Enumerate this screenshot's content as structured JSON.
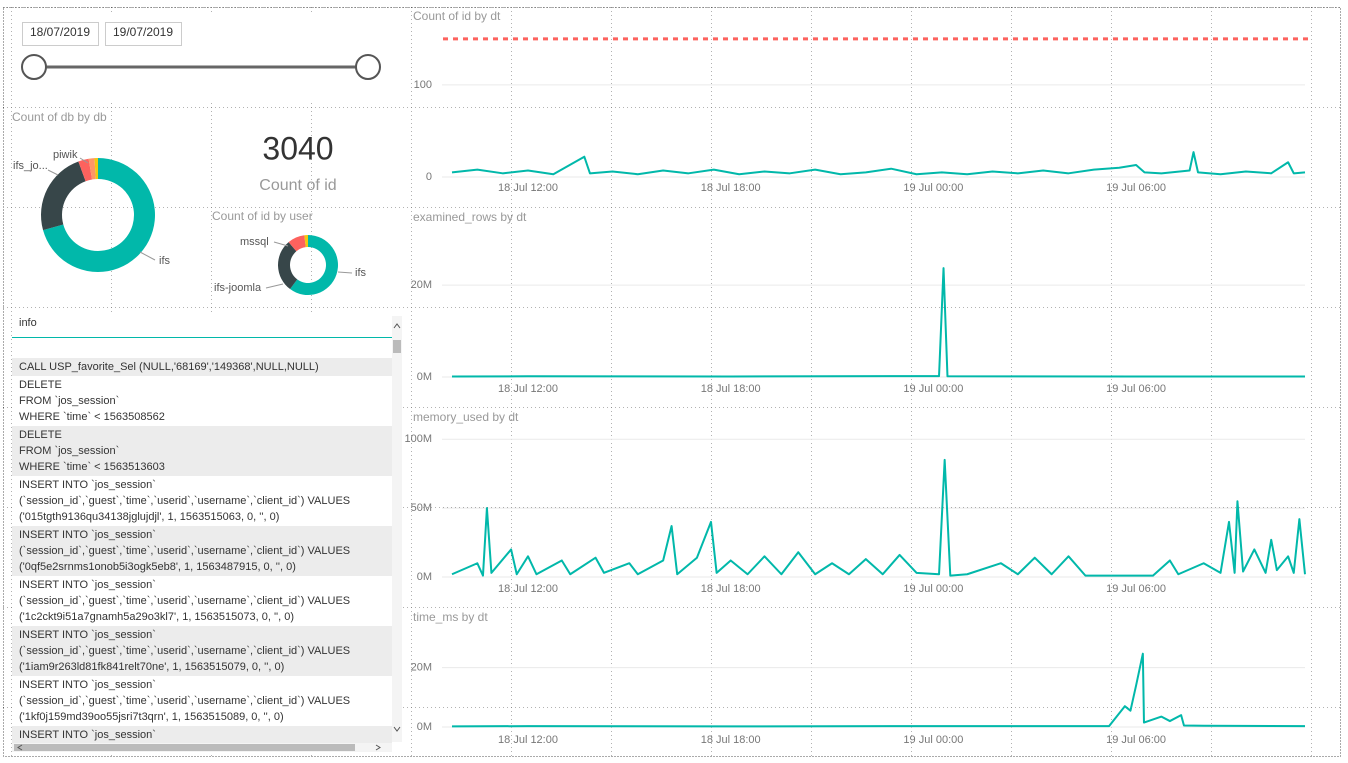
{
  "slicer": {
    "start": "18/07/2019",
    "end": "19/07/2019"
  },
  "card": {
    "value": 3040,
    "label": "Count of id"
  },
  "table": {
    "header": "info",
    "rows": [
      [
        "CALL USP_favorite_Sel (NULL,'68169','149368',NULL,NULL)"
      ],
      [
        "DELETE",
        "FROM `jos_session`",
        "WHERE `time` < 1563508562"
      ],
      [
        "DELETE",
        "FROM `jos_session`",
        "WHERE `time` < 1563513603"
      ],
      [
        "INSERT INTO `jos_session`",
        "(`session_id`,`guest`,`time`,`userid`,`username`,`client_id`) VALUES",
        "('015tgth9136qu34138jglujdjl', 1, 1563515063, 0, '', 0)"
      ],
      [
        "INSERT INTO `jos_session`",
        "(`session_id`,`guest`,`time`,`userid`,`username`,`client_id`) VALUES",
        "('0qf5e2srnms1onob5i3ogk5eb8', 1, 1563487915, 0, '', 0)"
      ],
      [
        "INSERT INTO `jos_session`",
        "(`session_id`,`guest`,`time`,`userid`,`username`,`client_id`) VALUES",
        "('1c2ckt9i51a7gnamh5a29o3kl7', 1, 1563515073, 0, '', 0)"
      ],
      [
        "INSERT INTO `jos_session`",
        "(`session_id`,`guest`,`time`,`userid`,`username`,`client_id`) VALUES",
        "('1iam9r263ld81fk841relt70ne', 1, 1563515079, 0, '', 0)"
      ],
      [
        "INSERT INTO `jos_session`",
        "(`session_id`,`guest`,`time`,`userid`,`username`,`client_id`) VALUES",
        "('1kf0j159md39oo55jsri7t3qrn', 1, 1563515089, 0, '', 0)"
      ],
      [
        "INSERT INTO `jos_session`"
      ]
    ]
  },
  "chart_data": [
    {
      "type": "donut",
      "title": "Count of db by db",
      "categories": [
        "ifs",
        "ifs_jo...",
        "piwik",
        null,
        null
      ],
      "values": [
        2150,
        720,
        90,
        50,
        30
      ],
      "colors": [
        "#01b8aa",
        "#374649",
        "#fd625e",
        "#fe9666",
        "#f2c80f"
      ]
    },
    {
      "type": "donut",
      "title": "Count of id by user",
      "categories": [
        "ifs",
        "ifs-joomla",
        "mssql",
        null
      ],
      "values": [
        1830,
        870,
        280,
        60
      ],
      "colors": [
        "#01b8aa",
        "#374649",
        "#fd625e",
        "#f2c80f"
      ]
    },
    {
      "type": "line",
      "title": "Count of id by dt",
      "color": "#01b8aa",
      "x": [
        "18 Jul 09:45",
        "18 Jul 10:30",
        "18 Jul 11:15",
        "18 Jul 12:00",
        "18 Jul 12:45",
        "18 Jul 13:40",
        "18 Jul 13:50",
        "18 Jul 14:30",
        "18 Jul 15:15",
        "18 Jul 16:00",
        "18 Jul 16:45",
        "18 Jul 17:30",
        "18 Jul 18:15",
        "18 Jul 19:00",
        "18 Jul 19:45",
        "18 Jul 20:30",
        "18 Jul 21:15",
        "18 Jul 22:00",
        "18 Jul 22:45",
        "18 Jul 23:30",
        "19 Jul 00:15",
        "19 Jul 01:00",
        "19 Jul 01:45",
        "19 Jul 02:30",
        "19 Jul 03:15",
        "19 Jul 04:00",
        "19 Jul 04:45",
        "19 Jul 05:30",
        "19 Jul 06:00",
        "19 Jul 06:15",
        "19 Jul 06:45",
        "19 Jul 07:35",
        "19 Jul 07:42",
        "19 Jul 07:50",
        "19 Jul 08:30",
        "19 Jul 09:15",
        "19 Jul 10:00",
        "19 Jul 10:30",
        "19 Jul 10:40",
        "19 Jul 11:00"
      ],
      "values": [
        5,
        8,
        4,
        7,
        3,
        22,
        4,
        6,
        3,
        7,
        4,
        8,
        3,
        6,
        4,
        8,
        3,
        5,
        9,
        3,
        5,
        3,
        6,
        4,
        7,
        4,
        8,
        10,
        13,
        5,
        4,
        7,
        27,
        5,
        3,
        6,
        4,
        16,
        4,
        5
      ],
      "xlim": [
        "18 Jul 09:45",
        "19 Jul 11:00"
      ],
      "xticks": [
        "18 Jul 12:00",
        "18 Jul 18:00",
        "19 Jul 00:00",
        "19 Jul 06:00"
      ],
      "ylim": [
        0,
        165
      ],
      "yticks": [
        0,
        100
      ],
      "grid": true,
      "reference_line": {
        "value": 150,
        "color": "#fd625e"
      }
    },
    {
      "type": "line",
      "title": "examined_rows by dt",
      "color": "#01b8aa",
      "x": [
        "18 Jul 09:45",
        "18 Jul 12:00",
        "18 Jul 18:00",
        "19 Jul 00:10",
        "19 Jul 00:18",
        "19 Jul 00:25",
        "19 Jul 06:00",
        "19 Jul 11:00"
      ],
      "values": [
        100000,
        150000,
        120000,
        200000,
        23700000,
        150000,
        100000,
        120000
      ],
      "xlim": [
        "18 Jul 09:45",
        "19 Jul 11:00"
      ],
      "xticks": [
        "18 Jul 12:00",
        "18 Jul 18:00",
        "19 Jul 00:00",
        "19 Jul 06:00"
      ],
      "ylim": [
        0,
        32000000
      ],
      "yticks": [
        {
          "value": 0,
          "label": "0M"
        },
        {
          "value": 20000000,
          "label": "20M"
        }
      ],
      "grid": true
    },
    {
      "type": "line",
      "title": "memory_used by dt",
      "color": "#01b8aa",
      "x": [
        "18 Jul 09:45",
        "18 Jul 10:30",
        "18 Jul 10:40",
        "18 Jul 10:47",
        "18 Jul 10:55",
        "18 Jul 11:30",
        "18 Jul 11:40",
        "18 Jul 12:00",
        "18 Jul 12:15",
        "18 Jul 13:00",
        "18 Jul 13:15",
        "18 Jul 14:00",
        "18 Jul 14:15",
        "18 Jul 15:00",
        "18 Jul 15:15",
        "18 Jul 16:00",
        "18 Jul 16:15",
        "18 Jul 16:25",
        "18 Jul 17:00",
        "18 Jul 17:25",
        "18 Jul 17:35",
        "18 Jul 18:00",
        "18 Jul 18:30",
        "18 Jul 19:00",
        "18 Jul 19:30",
        "18 Jul 20:00",
        "18 Jul 20:30",
        "18 Jul 21:00",
        "18 Jul 21:30",
        "18 Jul 22:00",
        "18 Jul 22:30",
        "18 Jul 23:00",
        "18 Jul 23:30",
        "19 Jul 00:10",
        "19 Jul 00:20",
        "19 Jul 00:30",
        "19 Jul 01:00",
        "19 Jul 02:00",
        "19 Jul 02:30",
        "19 Jul 03:00",
        "19 Jul 03:30",
        "19 Jul 04:00",
        "19 Jul 04:30",
        "19 Jul 05:00",
        "19 Jul 06:00",
        "19 Jul 06:30",
        "19 Jul 07:00",
        "19 Jul 07:15",
        "19 Jul 08:00",
        "19 Jul 08:30",
        "19 Jul 08:45",
        "19 Jul 08:55",
        "19 Jul 09:00",
        "19 Jul 09:10",
        "19 Jul 09:30",
        "19 Jul 09:50",
        "19 Jul 10:00",
        "19 Jul 10:10",
        "19 Jul 10:30",
        "19 Jul 10:40",
        "19 Jul 10:50",
        "19 Jul 11:00"
      ],
      "values": [
        2000000,
        10000000,
        1000000,
        50000000,
        3000000,
        20000000,
        2000000,
        15000000,
        2000000,
        12000000,
        2000000,
        14000000,
        3000000,
        10000000,
        2000000,
        12000000,
        37000000,
        2000000,
        14000000,
        40000000,
        3000000,
        12000000,
        2000000,
        15000000,
        2000000,
        18000000,
        2000000,
        10000000,
        2000000,
        13000000,
        2000000,
        16000000,
        3000000,
        2000000,
        85000000,
        1000000,
        2000000,
        10000000,
        2000000,
        14000000,
        2000000,
        15000000,
        1000000,
        1000000,
        1000000,
        1000000,
        12000000,
        2000000,
        10000000,
        3000000,
        40000000,
        3000000,
        55000000,
        4000000,
        20000000,
        3000000,
        27000000,
        5000000,
        15000000,
        3000000,
        42000000,
        2000000
      ],
      "xlim": [
        "18 Jul 09:45",
        "19 Jul 11:00"
      ],
      "xticks": [
        "18 Jul 12:00",
        "18 Jul 18:00",
        "19 Jul 00:00",
        "19 Jul 06:00"
      ],
      "ylim": [
        0,
        106000000
      ],
      "yticks": [
        {
          "value": 0,
          "label": "0M"
        },
        {
          "value": 50000000,
          "label": "50M"
        },
        {
          "value": 100000000,
          "label": "100M"
        }
      ],
      "grid": true
    },
    {
      "type": "line",
      "title": "time_ms by dt",
      "color": "#01b8aa",
      "x": [
        "18 Jul 09:45",
        "18 Jul 12:00",
        "18 Jul 18:00",
        "19 Jul 00:00",
        "19 Jul 05:12",
        "19 Jul 05:40",
        "19 Jul 05:50",
        "19 Jul 06:00",
        "19 Jul 06:12",
        "19 Jul 06:14",
        "19 Jul 06:45",
        "19 Jul 07:00",
        "19 Jul 07:20",
        "19 Jul 07:25",
        "19 Jul 08:00",
        "19 Jul 11:00"
      ],
      "values": [
        200000,
        300000,
        200000,
        300000,
        300000,
        7000000,
        5500000,
        14000000,
        24700000,
        1500000,
        3500000,
        2000000,
        4000000,
        500000,
        400000,
        300000
      ],
      "xlim": [
        "18 Jul 09:45",
        "19 Jul 11:00"
      ],
      "xticks": [
        "18 Jul 12:00",
        "18 Jul 18:00",
        "19 Jul 00:00",
        "19 Jul 06:00"
      ],
      "ylim": [
        0,
        32000000
      ],
      "yticks": [
        {
          "value": 0,
          "label": "0M"
        },
        {
          "value": 20000000,
          "label": "20M"
        }
      ],
      "grid": true
    }
  ]
}
